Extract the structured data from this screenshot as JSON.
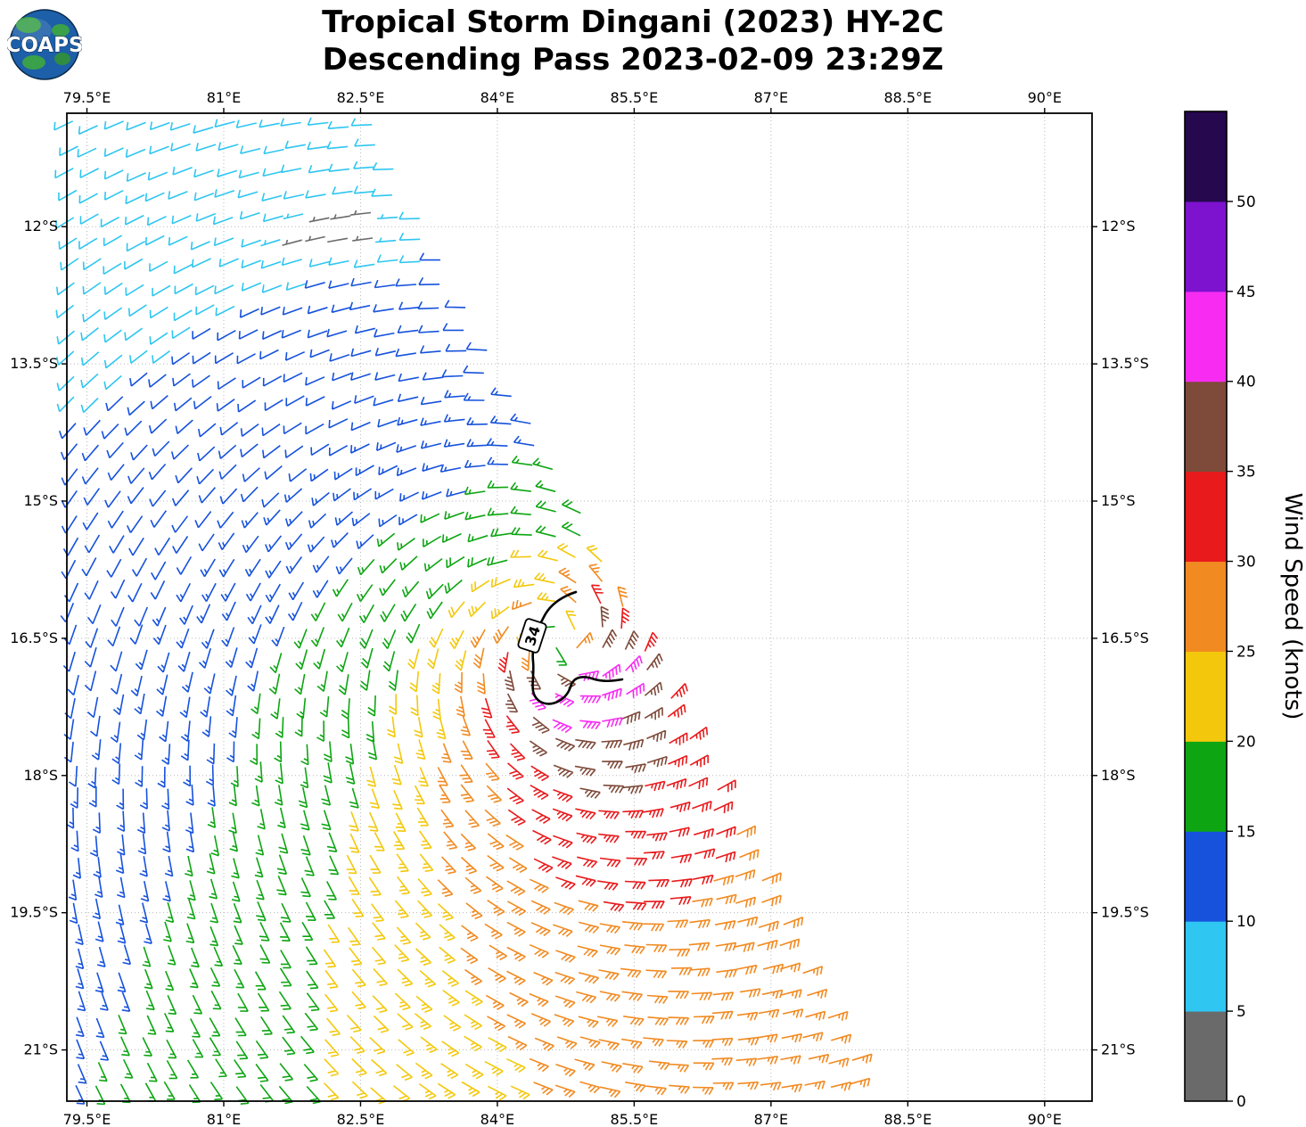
{
  "header": {
    "title_line1": "Tropical Storm Dingani (2023) HY-2C",
    "title_line2": "Descending Pass 2023-02-09 23:29Z",
    "logo_text": "COAPS"
  },
  "chart_data": {
    "type": "wind_barb_map",
    "title": "Tropical Storm Dingani (2023) HY-2C",
    "subtitle": "Descending Pass 2023-02-09 23:29Z",
    "storm_name": "Dingani",
    "season": "2023",
    "satellite": "HY-2C",
    "pass_type": "Descending",
    "pass_time": "2023-02-09 23:29Z",
    "x_axis": {
      "ticks": [
        "79.5°E",
        "81°E",
        "82.5°E",
        "84°E",
        "85.5°E",
        "87°E",
        "88.5°E",
        "90°E"
      ],
      "tick_values": [
        79.5,
        81,
        82.5,
        84,
        85.5,
        87,
        88.5,
        90
      ],
      "range": [
        79.28,
        90.52
      ],
      "grid": "dotted"
    },
    "y_axis": {
      "ticks": [
        "12°S",
        "13.5°S",
        "15°S",
        "16.5°S",
        "18°S",
        "19.5°S",
        "21°S"
      ],
      "tick_values": [
        -12,
        -13.5,
        -15,
        -16.5,
        -18,
        -19.5,
        -21
      ],
      "range": [
        -10.76,
        -21.56
      ],
      "grid": "dotted"
    },
    "colorbar": {
      "label": "Wind Speed (knots)",
      "ticks": [
        0,
        5,
        10,
        15,
        20,
        25,
        30,
        35,
        40,
        45,
        50
      ],
      "max_value": 55,
      "bins": [
        {
          "range": [
            0,
            5
          ],
          "color": "#6a6a6a",
          "name": "gray"
        },
        {
          "range": [
            5,
            10
          ],
          "color": "#2fc6f1",
          "name": "cyan"
        },
        {
          "range": [
            10,
            15
          ],
          "color": "#1652dc",
          "name": "blue"
        },
        {
          "range": [
            15,
            20
          ],
          "color": "#0da512",
          "name": "green"
        },
        {
          "range": [
            20,
            25
          ],
          "color": "#f3c80c",
          "name": "yellow"
        },
        {
          "range": [
            25,
            30
          ],
          "color": "#f18a21",
          "name": "orange"
        },
        {
          "range": [
            30,
            35
          ],
          "color": "#e81a1c",
          "name": "red"
        },
        {
          "range": [
            35,
            40
          ],
          "color": "#7e4a3a",
          "name": "brown"
        },
        {
          "range": [
            40,
            45
          ],
          "color": "#f72bf2",
          "name": "magenta"
        },
        {
          "range": [
            45,
            50
          ],
          "color": "#7d12cf",
          "name": "purple"
        },
        {
          "range": [
            50,
            55
          ],
          "color": "#25084d",
          "name": "dark-indigo"
        }
      ]
    },
    "contour": {
      "label": "34",
      "meaning": "34-knot wind radius contour"
    },
    "wind_field": {
      "center": {
        "lon": 84.7,
        "lat": -16.55
      },
      "max_wind_kt": 38,
      "observed_peak_bin_kt": [
        40,
        45
      ],
      "radius_max_wind_deg": 0.5,
      "rotation": "clockwise (Southern Hemisphere cyclone)",
      "calm_pocket": {
        "lon": 82.35,
        "lat": -12.05,
        "sx": 0.45,
        "sy": 0.18,
        "depth": 0.92
      },
      "swath_right_edge": [
        {
          "lat": -10.76,
          "lon": 82.65
        },
        {
          "lat": -21.56,
          "lon": 88.2
        }
      ],
      "grid_spacing_deg": 0.25
    }
  }
}
